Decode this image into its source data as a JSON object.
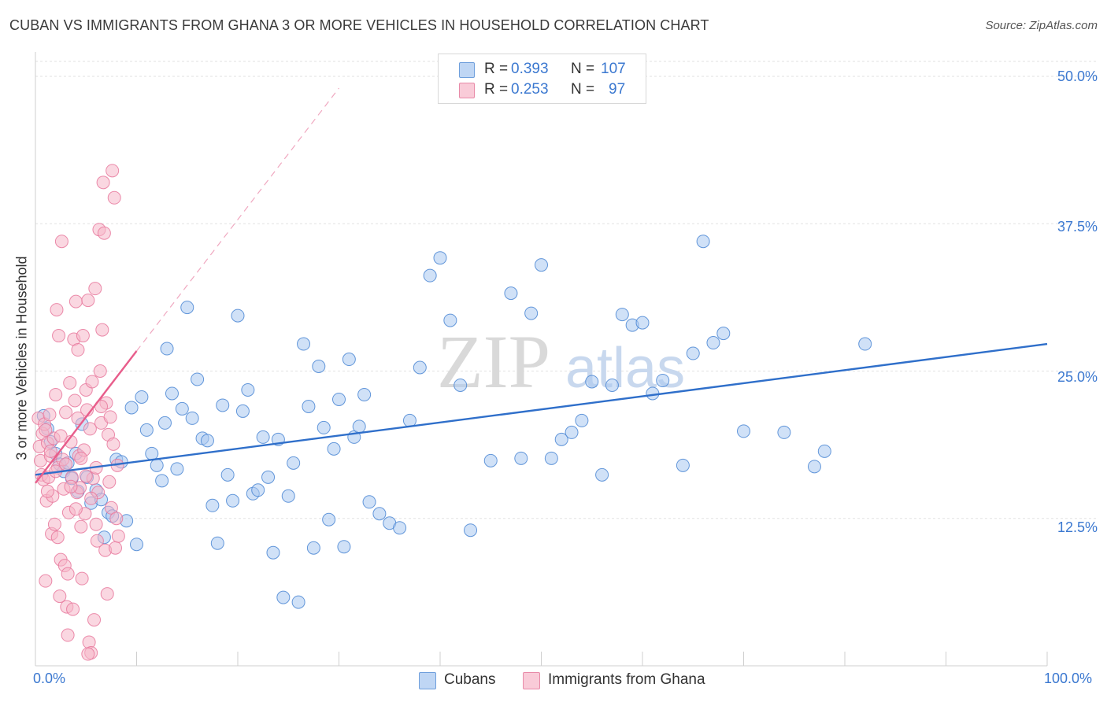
{
  "title": "CUBAN VS IMMIGRANTS FROM GHANA 3 OR MORE VEHICLES IN HOUSEHOLD CORRELATION CHART",
  "source": "Source: ZipAtlas.com",
  "watermark": {
    "zip": "ZIP",
    "atlas": "atlas"
  },
  "legend": {
    "rows": [
      {
        "r_label": "R =",
        "r_value": "0.393",
        "n_label": "N =",
        "n_value": "107",
        "color": "#a9c8f0"
      },
      {
        "r_label": "R =",
        "r_value": "0.253",
        "n_label": "N =",
        "n_value": "97",
        "color": "#f5b7c9"
      }
    ]
  },
  "bottom_legend": [
    {
      "label": "Cubans",
      "color": "#a9c8f0"
    },
    {
      "label": "Immigrants from Ghana",
      "color": "#f5b7c9"
    }
  ],
  "chart_data": {
    "type": "scatter",
    "title": "CUBAN VS IMMIGRANTS FROM GHANA 3 OR MORE VEHICLES IN HOUSEHOLD CORRELATION CHART",
    "xlabel": "",
    "ylabel": "3 or more Vehicles in Household",
    "xlim": [
      0,
      100
    ],
    "ylim": [
      0,
      50
    ],
    "x_tick_labels": [
      "0.0%",
      "100.0%"
    ],
    "y_ticks": [
      12.5,
      25.0,
      37.5,
      50.0
    ],
    "y_tick_labels": [
      "12.5%",
      "25.0%",
      "37.5%",
      "50.0%"
    ],
    "grid": true,
    "series": [
      {
        "name": "Cubans",
        "color": "#4a86d4",
        "fill": "#a9c8f0",
        "trend": {
          "x0": 0,
          "y0": 16.2,
          "x1": 100,
          "y1": 27.3,
          "color": "#2f6fca"
        },
        "points": [
          [
            0.8,
            21.2
          ],
          [
            1.2,
            20.1
          ],
          [
            1.5,
            19.0
          ],
          [
            2.0,
            18.0
          ],
          [
            2.4,
            17.1
          ],
          [
            2.8,
            16.5
          ],
          [
            3.2,
            17.2
          ],
          [
            3.6,
            15.9
          ],
          [
            4.0,
            18.0
          ],
          [
            4.2,
            14.8
          ],
          [
            4.6,
            20.5
          ],
          [
            5.1,
            16.0
          ],
          [
            5.5,
            13.8
          ],
          [
            6.0,
            14.9
          ],
          [
            6.5,
            14.1
          ],
          [
            6.8,
            10.9
          ],
          [
            7.2,
            13.0
          ],
          [
            7.6,
            12.7
          ],
          [
            8.0,
            17.5
          ],
          [
            8.5,
            17.3
          ],
          [
            9.0,
            12.3
          ],
          [
            9.5,
            21.9
          ],
          [
            10.0,
            10.3
          ],
          [
            10.5,
            22.8
          ],
          [
            11.0,
            20.0
          ],
          [
            11.5,
            18.0
          ],
          [
            12.0,
            17.0
          ],
          [
            12.5,
            15.7
          ],
          [
            12.8,
            20.6
          ],
          [
            13.0,
            26.9
          ],
          [
            13.5,
            23.1
          ],
          [
            14.0,
            16.7
          ],
          [
            14.5,
            21.8
          ],
          [
            15.0,
            30.4
          ],
          [
            15.5,
            21.0
          ],
          [
            16.0,
            24.3
          ],
          [
            16.5,
            19.3
          ],
          [
            17.0,
            19.1
          ],
          [
            17.5,
            13.6
          ],
          [
            18.0,
            10.4
          ],
          [
            18.5,
            22.1
          ],
          [
            19.0,
            16.2
          ],
          [
            19.5,
            14.0
          ],
          [
            20.0,
            29.7
          ],
          [
            20.5,
            21.6
          ],
          [
            21.0,
            23.4
          ],
          [
            21.5,
            14.6
          ],
          [
            22.0,
            14.9
          ],
          [
            22.5,
            19.4
          ],
          [
            23.0,
            16.0
          ],
          [
            23.5,
            9.6
          ],
          [
            24.0,
            19.2
          ],
          [
            24.5,
            5.8
          ],
          [
            25.0,
            14.4
          ],
          [
            25.5,
            17.2
          ],
          [
            26.0,
            5.4
          ],
          [
            26.5,
            27.3
          ],
          [
            27.0,
            22.0
          ],
          [
            27.5,
            10.0
          ],
          [
            28.0,
            25.4
          ],
          [
            28.5,
            20.2
          ],
          [
            29.0,
            12.4
          ],
          [
            29.5,
            18.4
          ],
          [
            30.0,
            22.6
          ],
          [
            30.5,
            10.1
          ],
          [
            31.0,
            26.0
          ],
          [
            31.5,
            19.4
          ],
          [
            32.0,
            20.3
          ],
          [
            32.5,
            23.0
          ],
          [
            33.0,
            13.9
          ],
          [
            34.0,
            12.9
          ],
          [
            35.0,
            12.1
          ],
          [
            36.0,
            11.7
          ],
          [
            37.0,
            20.8
          ],
          [
            38.0,
            25.3
          ],
          [
            39.0,
            33.1
          ],
          [
            40.0,
            34.6
          ],
          [
            41.0,
            29.3
          ],
          [
            42.0,
            23.8
          ],
          [
            43.0,
            11.5
          ],
          [
            45.0,
            17.4
          ],
          [
            47.0,
            31.6
          ],
          [
            48.0,
            17.6
          ],
          [
            49.0,
            29.9
          ],
          [
            50.0,
            34.0
          ],
          [
            51.0,
            17.6
          ],
          [
            52.0,
            19.2
          ],
          [
            53.0,
            19.8
          ],
          [
            54.0,
            20.8
          ],
          [
            55.0,
            24.1
          ],
          [
            56.0,
            16.2
          ],
          [
            57.0,
            23.8
          ],
          [
            58.0,
            29.8
          ],
          [
            59.0,
            28.9
          ],
          [
            60.0,
            29.1
          ],
          [
            61.0,
            23.1
          ],
          [
            62.0,
            24.2
          ],
          [
            64.0,
            17.0
          ],
          [
            65.0,
            26.5
          ],
          [
            66.0,
            36.0
          ],
          [
            67.0,
            27.4
          ],
          [
            68.0,
            28.2
          ],
          [
            70.0,
            19.9
          ],
          [
            74.0,
            19.8
          ],
          [
            77.0,
            16.9
          ],
          [
            78.0,
            18.2
          ],
          [
            82.0,
            27.3
          ]
        ]
      },
      {
        "name": "Immigrants from Ghana",
        "color": "#e8789c",
        "fill": "#f5b7c9",
        "trend": {
          "x0": 0,
          "y0": 15.5,
          "x1": 10,
          "y1": 26.7,
          "color": "#e85d8b",
          "dashed_to": {
            "x": 30,
            "y": 49.0
          }
        },
        "points": [
          [
            0.3,
            21.0
          ],
          [
            0.4,
            18.6
          ],
          [
            0.5,
            17.4
          ],
          [
            0.6,
            16.2
          ],
          [
            0.7,
            19.7
          ],
          [
            0.8,
            15.8
          ],
          [
            0.9,
            20.5
          ],
          [
            1.0,
            7.2
          ],
          [
            1.1,
            14.0
          ],
          [
            1.2,
            18.9
          ],
          [
            1.3,
            16.0
          ],
          [
            1.4,
            21.3
          ],
          [
            1.5,
            17.8
          ],
          [
            1.6,
            11.2
          ],
          [
            1.7,
            14.4
          ],
          [
            1.8,
            19.3
          ],
          [
            1.9,
            12.0
          ],
          [
            2.0,
            23.0
          ],
          [
            2.1,
            30.2
          ],
          [
            2.2,
            16.8
          ],
          [
            2.3,
            28.0
          ],
          [
            2.4,
            5.9
          ],
          [
            2.5,
            9.0
          ],
          [
            2.6,
            36.0
          ],
          [
            2.7,
            17.5
          ],
          [
            2.8,
            15.0
          ],
          [
            2.9,
            8.5
          ],
          [
            3.0,
            21.5
          ],
          [
            3.1,
            5.0
          ],
          [
            3.2,
            2.6
          ],
          [
            3.3,
            13.0
          ],
          [
            3.4,
            24.0
          ],
          [
            3.5,
            19.0
          ],
          [
            3.6,
            16.0
          ],
          [
            3.7,
            4.8
          ],
          [
            3.8,
            27.7
          ],
          [
            3.9,
            22.5
          ],
          [
            4.0,
            30.9
          ],
          [
            4.1,
            14.7
          ],
          [
            4.2,
            26.8
          ],
          [
            4.3,
            17.8
          ],
          [
            4.4,
            15.1
          ],
          [
            4.5,
            11.8
          ],
          [
            4.6,
            7.4
          ],
          [
            4.7,
            28.0
          ],
          [
            4.8,
            18.3
          ],
          [
            4.9,
            12.9
          ],
          [
            5.0,
            23.4
          ],
          [
            5.1,
            21.7
          ],
          [
            5.2,
            31.0
          ],
          [
            5.3,
            2.0
          ],
          [
            5.4,
            20.1
          ],
          [
            5.5,
            1.1
          ],
          [
            5.6,
            24.1
          ],
          [
            5.7,
            15.9
          ],
          [
            5.8,
            3.9
          ],
          [
            5.9,
            32.0
          ],
          [
            6.0,
            16.8
          ],
          [
            6.1,
            10.6
          ],
          [
            6.2,
            14.7
          ],
          [
            6.3,
            37.0
          ],
          [
            6.4,
            25.0
          ],
          [
            6.5,
            20.6
          ],
          [
            6.6,
            28.5
          ],
          [
            6.7,
            41.0
          ],
          [
            6.8,
            36.7
          ],
          [
            6.9,
            9.8
          ],
          [
            7.0,
            22.3
          ],
          [
            7.1,
            6.1
          ],
          [
            7.2,
            19.6
          ],
          [
            7.3,
            15.6
          ],
          [
            7.4,
            21.1
          ],
          [
            7.5,
            13.4
          ],
          [
            7.6,
            42.0
          ],
          [
            7.7,
            18.8
          ],
          [
            7.8,
            39.7
          ],
          [
            7.9,
            10.0
          ],
          [
            8.0,
            12.5
          ],
          [
            8.1,
            17.0
          ],
          [
            8.2,
            11.0
          ],
          [
            1.0,
            20.0
          ],
          [
            1.5,
            18.2
          ],
          [
            2.0,
            16.5
          ],
          [
            2.5,
            19.5
          ],
          [
            3.0,
            17.1
          ],
          [
            3.5,
            15.2
          ],
          [
            4.0,
            13.3
          ],
          [
            4.5,
            17.6
          ],
          [
            5.0,
            16.1
          ],
          [
            5.5,
            14.2
          ],
          [
            6.0,
            12.0
          ],
          [
            6.5,
            22.0
          ],
          [
            1.2,
            14.8
          ],
          [
            2.2,
            10.9
          ],
          [
            3.2,
            7.8
          ],
          [
            4.2,
            21.0
          ],
          [
            5.2,
            1.0
          ]
        ]
      }
    ]
  }
}
